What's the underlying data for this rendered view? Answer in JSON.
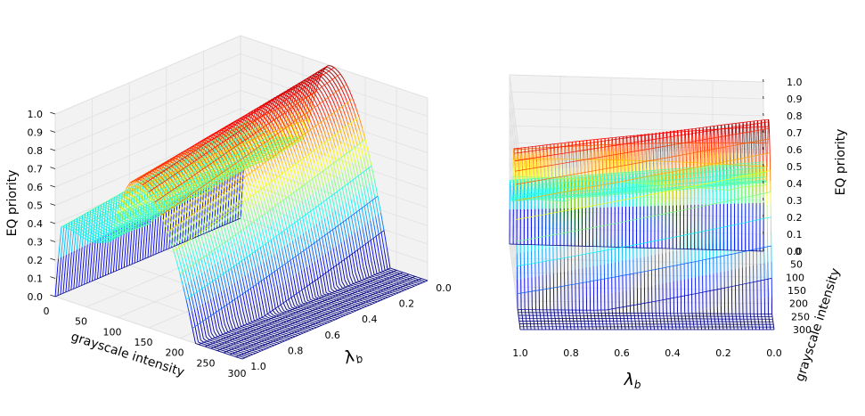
{
  "chart_data": [
    {
      "type": "surface",
      "title": "",
      "zlabel": "EQ priority",
      "xlabel": "grayscale intensity",
      "ylabel": "λb",
      "zticks": [
        "0.0",
        "0.1",
        "0.2",
        "0.3",
        "0.4",
        "0.5",
        "0.6",
        "0.7",
        "0.8",
        "0.9",
        "1.0"
      ],
      "xticks": [
        "0",
        "50",
        "100",
        "150",
        "200",
        "250",
        "300"
      ],
      "yticks": [
        "1.0",
        "0.8",
        "0.6",
        "0.4",
        "0.2",
        "0.0"
      ],
      "xlim": [
        0,
        300
      ],
      "ylim": [
        0,
        1
      ],
      "zlim": [
        0,
        1
      ],
      "colormap": "jet",
      "grid": true,
      "surface": {
        "description_values": {
          "low_intensity_plateau": 0.5,
          "peak_value": 1.0,
          "peak_intensity": 120,
          "high_intensity_drop": 0.0,
          "drop_start_intensity": 140
        }
      }
    },
    {
      "type": "surface",
      "title": "",
      "zlabel": "EQ priority",
      "xlabel": "grayscale intensity",
      "ylabel": "λb",
      "zticks": [
        "0.0",
        "0.1",
        "0.2",
        "0.3",
        "0.4",
        "0.5",
        "0.6",
        "0.7",
        "0.8",
        "0.9",
        "1.0"
      ],
      "xticks": [
        "0",
        "50",
        "100",
        "150",
        "200",
        "250",
        "300"
      ],
      "yticks": [
        "1.0",
        "0.8",
        "0.6",
        "0.4",
        "0.2",
        "0.0"
      ],
      "xlim": [
        0,
        300
      ],
      "ylim": [
        0,
        1
      ],
      "zlim": [
        0,
        1
      ],
      "colormap": "jet",
      "grid": true
    }
  ],
  "colors": {
    "pane": "#f2f2f2",
    "grid": "#e0e0e0",
    "axis": "#222222"
  }
}
